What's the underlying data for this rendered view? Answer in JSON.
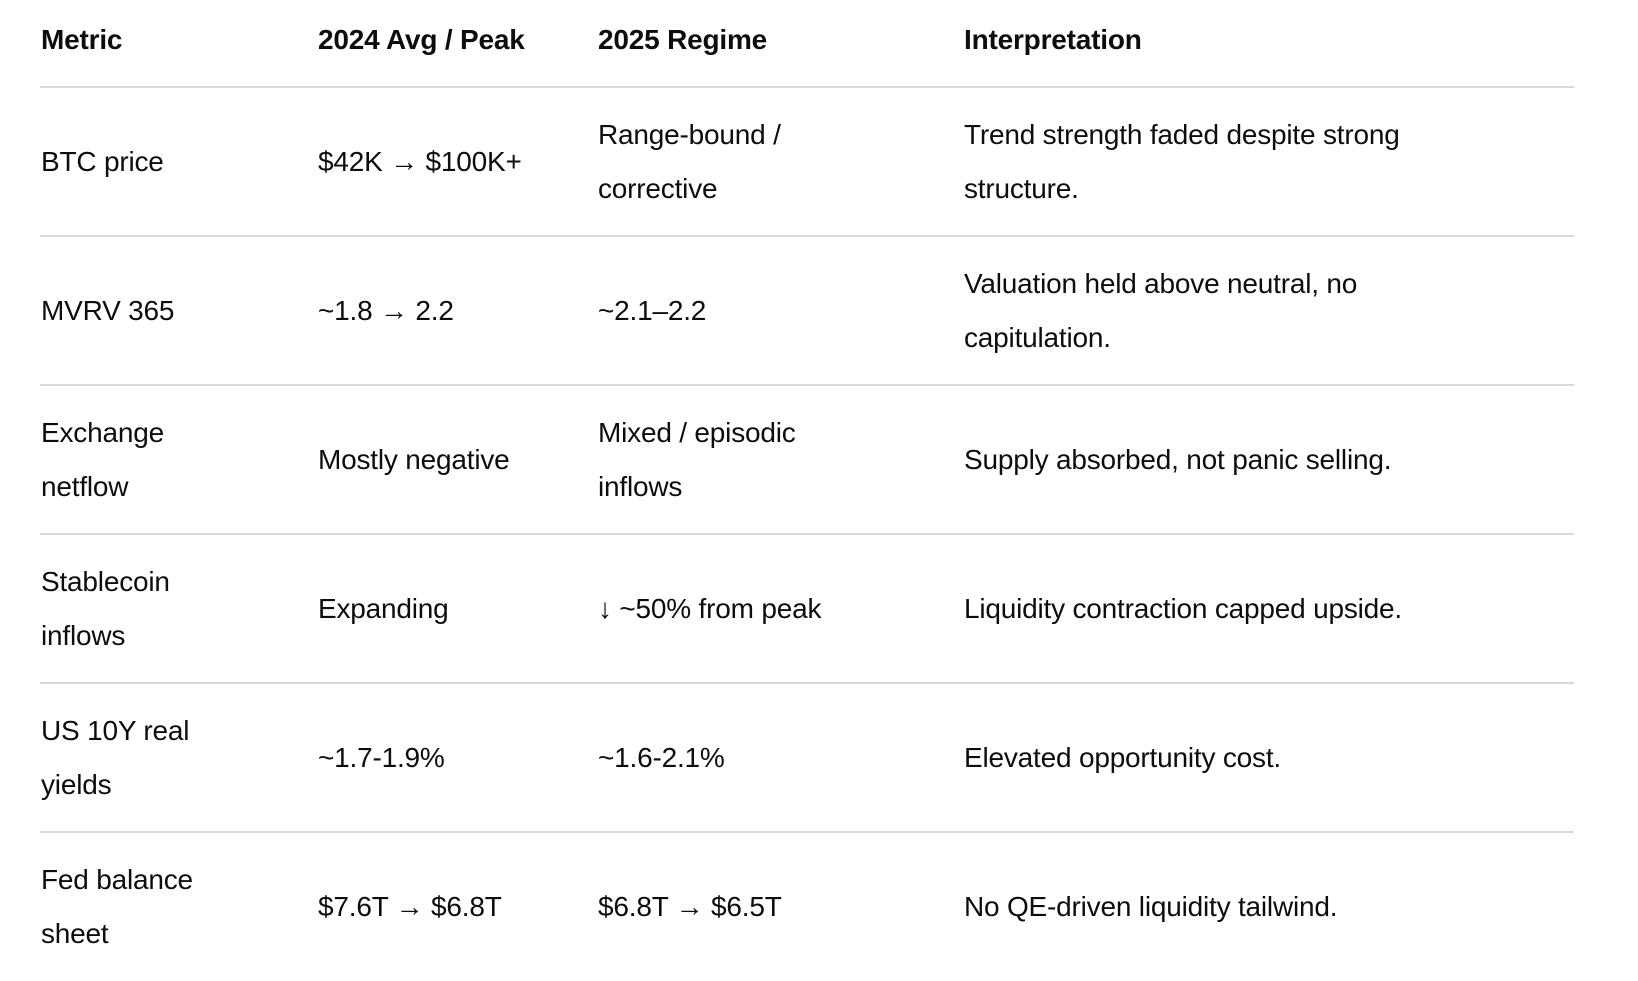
{
  "colors": {
    "background": "#ffffff",
    "text": "#0d0d0d",
    "divider": "#d9d9d9"
  },
  "chart_data": {
    "type": "table",
    "columns": [
      "Metric",
      "2024 Avg / Peak",
      "2025 Regime",
      "Interpretation"
    ],
    "rows": [
      [
        "BTC price",
        "$42K → $100K+",
        "Range-bound /\ncorrective",
        "Trend strength faded despite strong\nstructure."
      ],
      [
        "MVRV 365",
        "~1.8 → 2.2",
        "~2.1–2.2",
        "Valuation held above neutral, no\ncapitulation."
      ],
      [
        "Exchange\nnetflow",
        "Mostly negative",
        "Mixed / episodic\ninflows",
        "Supply absorbed, not panic selling."
      ],
      [
        "Stablecoin\ninflows",
        "Expanding",
        "↓ ~50% from peak",
        "Liquidity contraction capped upside."
      ],
      [
        "US 10Y real\nyields",
        "~1.7-1.9%",
        "~1.6-2.1%",
        "Elevated opportunity cost."
      ],
      [
        "Fed balance\nsheet",
        "$7.6T → $6.8T",
        "$6.8T → $6.5T",
        "No QE-driven liquidity tailwind."
      ]
    ]
  }
}
